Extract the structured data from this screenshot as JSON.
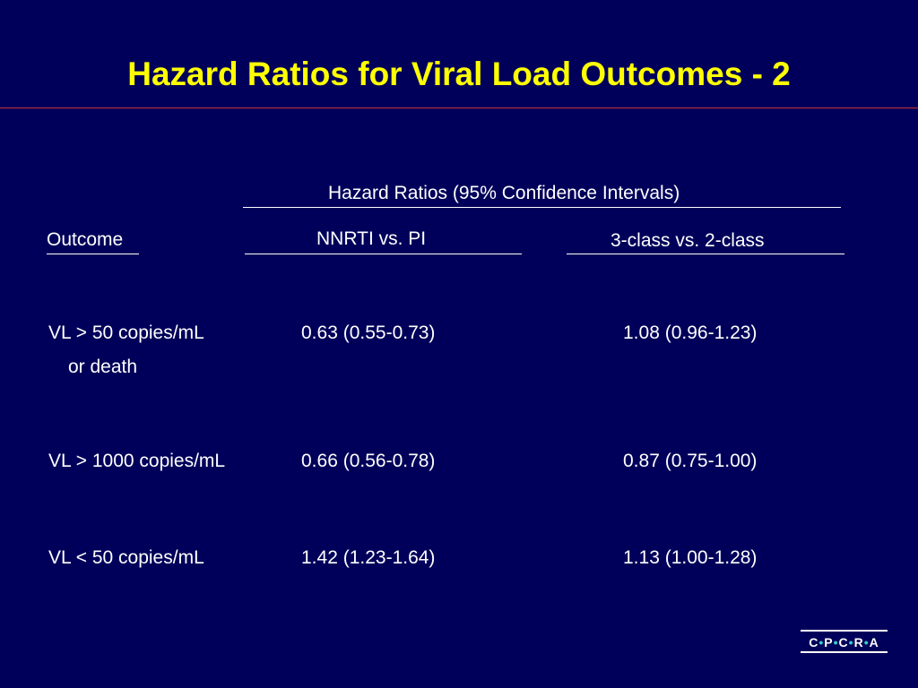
{
  "slide": {
    "title": "Hazard Ratios for Viral Load Outcomes - 2",
    "colors": {
      "background": "#00005a",
      "title": "#ffff00",
      "title_rule": "#cc3333",
      "text": "#ffffff",
      "logo_dots": "#33cccc"
    }
  },
  "table": {
    "group_header": "Hazard Ratios (95% Confidence Intervals)",
    "outcome_header": "Outcome",
    "col1_header": "NNRTI vs. PI",
    "col2_header": "3-class vs. 2-class",
    "rows": [
      {
        "outcome": "VL > 50 copies/mL",
        "outcome_line2": "or death",
        "col1": "0.63 (0.55-0.73)",
        "col2": "1.08 (0.96-1.23)"
      },
      {
        "outcome": "VL > 1000 copies/mL",
        "col1": "0.66 (0.56-0.78)",
        "col2": "0.87 (0.75-1.00)"
      },
      {
        "outcome": "VL < 50 copies/mL",
        "col1": "1.42 (1.23-1.64)",
        "col2": "1.13 (1.00-1.28)"
      }
    ]
  },
  "logo": {
    "text": "C•P•C•R•A"
  }
}
